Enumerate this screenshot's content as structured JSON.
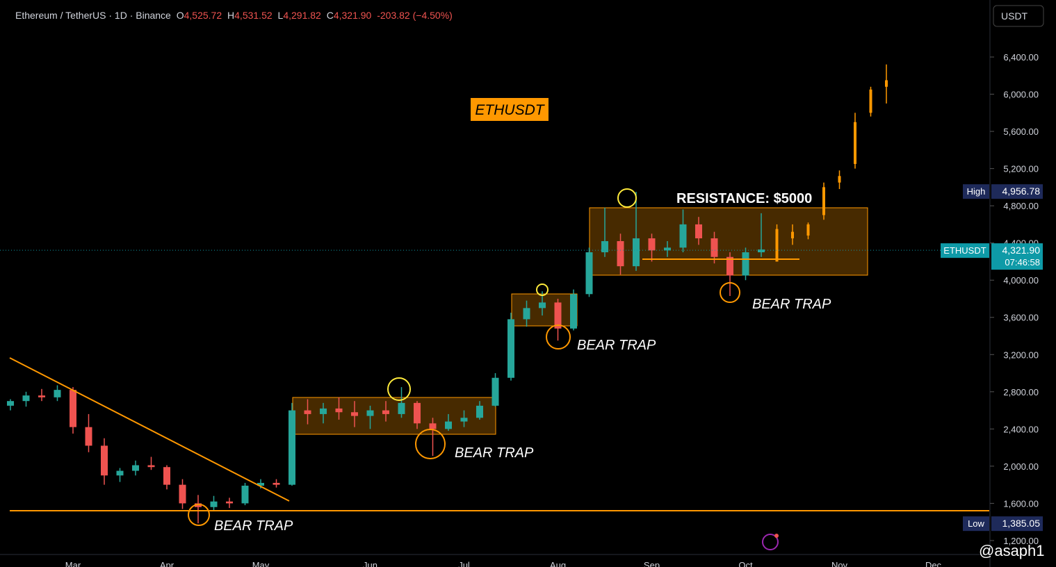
{
  "header": {
    "symbol": "Ethereum / TetherUS · 1D · Binance",
    "o_label": "O",
    "o": "4,525.72",
    "h_label": "H",
    "h": "4,531.52",
    "l_label": "L",
    "l": "4,291.82",
    "c_label": "C",
    "c": "4,321.90",
    "change": "-203.82 (−4.50%)"
  },
  "currency": "USDT",
  "watermark": "@asaph1",
  "chart_data": {
    "type": "candlestick",
    "categories": [
      null,
      null,
      null,
      null,
      "Mar",
      null,
      null,
      null,
      null,
      null,
      "Apr",
      null,
      null,
      null,
      null,
      null,
      "May",
      null,
      null,
      null,
      null,
      null,
      null,
      "Jun",
      null,
      null,
      null,
      null,
      null,
      "Jul",
      null,
      null,
      null,
      null,
      null,
      "Aug",
      null,
      null,
      null,
      null,
      null,
      "Sep",
      null,
      null,
      null,
      null,
      null,
      "Oct",
      null,
      null,
      null,
      null,
      null,
      "Nov",
      null,
      null,
      null,
      null,
      null,
      "Dec"
    ],
    "series": [
      {
        "up_color": "#26a69a",
        "down_color": "#ef5350",
        "values": [
          [
            2650,
            2720,
            2600,
            2700
          ],
          [
            2700,
            2800,
            2640,
            2760
          ],
          [
            2760,
            2830,
            2700,
            2740
          ],
          [
            2740,
            2870,
            2700,
            2820
          ],
          [
            2820,
            2850,
            2350,
            2420
          ],
          [
            2420,
            2560,
            2150,
            2220
          ],
          [
            2220,
            2300,
            1800,
            1900
          ],
          [
            1900,
            1980,
            1830,
            1950
          ],
          [
            1950,
            2060,
            1900,
            2010
          ],
          [
            2010,
            2100,
            1960,
            1990
          ],
          [
            1990,
            2010,
            1750,
            1800
          ],
          [
            1800,
            1860,
            1540,
            1600
          ],
          [
            1600,
            1690,
            1385,
            1560
          ],
          [
            1560,
            1680,
            1520,
            1620
          ],
          [
            1620,
            1660,
            1550,
            1600
          ],
          [
            1600,
            1820,
            1580,
            1790
          ],
          [
            1790,
            1860,
            1760,
            1820
          ],
          [
            1820,
            1860,
            1770,
            1800
          ],
          [
            1800,
            2680,
            1790,
            2600
          ],
          [
            2600,
            2720,
            2450,
            2560
          ],
          [
            2560,
            2680,
            2460,
            2620
          ],
          [
            2620,
            2740,
            2500,
            2580
          ],
          [
            2580,
            2700,
            2420,
            2540
          ],
          [
            2540,
            2650,
            2400,
            2600
          ],
          [
            2600,
            2700,
            2480,
            2560
          ],
          [
            2560,
            2850,
            2520,
            2680
          ],
          [
            2680,
            2700,
            2400,
            2460
          ],
          [
            2460,
            2520,
            2110,
            2400
          ],
          [
            2400,
            2560,
            2380,
            2480
          ],
          [
            2480,
            2600,
            2420,
            2520
          ],
          [
            2520,
            2700,
            2500,
            2650
          ],
          [
            2650,
            3000,
            2640,
            2950
          ],
          [
            2950,
            3650,
            2920,
            3580
          ],
          [
            3580,
            3780,
            3500,
            3700
          ],
          [
            3700,
            3880,
            3620,
            3760
          ],
          [
            3760,
            3800,
            3350,
            3480
          ],
          [
            3480,
            3900,
            3460,
            3850
          ],
          [
            3850,
            4350,
            3820,
            4300
          ],
          [
            4300,
            4780,
            4250,
            4420
          ],
          [
            4420,
            4500,
            4060,
            4150
          ],
          [
            4150,
            4950,
            4100,
            4450
          ],
          [
            4450,
            4500,
            4200,
            4320
          ],
          [
            4320,
            4420,
            4250,
            4350
          ],
          [
            4350,
            4760,
            4300,
            4600
          ],
          [
            4600,
            4680,
            4380,
            4450
          ],
          [
            4450,
            4520,
            4180,
            4250
          ],
          [
            4250,
            4300,
            3830,
            4050
          ],
          [
            4050,
            4350,
            4000,
            4300
          ],
          [
            4300,
            4720,
            4250,
            4330
          ],
          null,
          null,
          null,
          null,
          null,
          null,
          null,
          null,
          null,
          null,
          null
        ]
      },
      {
        "color": "#ff9800",
        "values": [
          null,
          null,
          null,
          null,
          null,
          null,
          null,
          null,
          null,
          null,
          null,
          null,
          null,
          null,
          null,
          null,
          null,
          null,
          null,
          null,
          null,
          null,
          null,
          null,
          null,
          null,
          null,
          null,
          null,
          null,
          null,
          null,
          null,
          null,
          null,
          null,
          null,
          null,
          null,
          null,
          null,
          null,
          null,
          null,
          null,
          null,
          null,
          null,
          null,
          [
            4200,
            4600,
            4200,
            4550
          ],
          [
            4450,
            4600,
            4380,
            4520
          ],
          [
            4480,
            4620,
            4440,
            4600
          ],
          [
            4700,
            5050,
            4650,
            5000
          ],
          [
            5050,
            5180,
            4980,
            5120
          ],
          [
            5250,
            5800,
            5200,
            5700
          ],
          [
            5800,
            6080,
            5760,
            6050
          ],
          [
            6080,
            6320,
            5900,
            6150
          ],
          null,
          null,
          null
        ]
      }
    ],
    "ylim": [
      1050,
      7013
    ],
    "yticks": [
      {
        "value": 1200,
        "label": "1,200.00"
      },
      {
        "value": 1600,
        "label": "1,600.00"
      },
      {
        "value": 2000,
        "label": "2,000.00"
      },
      {
        "value": 2400,
        "label": "2,400.00"
      },
      {
        "value": 2800,
        "label": "2,800.00"
      },
      {
        "value": 3200,
        "label": "3,200.00"
      },
      {
        "value": 3600,
        "label": "3,600.00"
      },
      {
        "value": 4000,
        "label": "4,000.00"
      },
      {
        "value": 4400,
        "label": "4,400.00"
      },
      {
        "value": 4800,
        "label": "4,800.00"
      },
      {
        "value": 5200,
        "label": "5,200.00"
      },
      {
        "value": 5600,
        "label": "5,600.00"
      },
      {
        "value": 6000,
        "label": "6,000.00"
      },
      {
        "value": 6400,
        "label": "6,400.00"
      }
    ],
    "markers": [
      {
        "name": "High",
        "value": 4956.78,
        "label": "4,956.78",
        "color": "#1e2a5a"
      },
      {
        "name": "ETHUSDT",
        "value": 4321.9,
        "label": "4,321.90",
        "countdown": "07:46:58",
        "color": "#0e9aa7"
      },
      {
        "name": "Low",
        "value": 1385.05,
        "label": "1,385.05",
        "color": "#1e2a5a"
      }
    ],
    "annotations": [
      "ETHUSDT",
      "RESISTANCE: $5000",
      "BEAR TRAP",
      "BEAR TRAP",
      "BEAR TRAP",
      "BEAR TRAP"
    ]
  }
}
